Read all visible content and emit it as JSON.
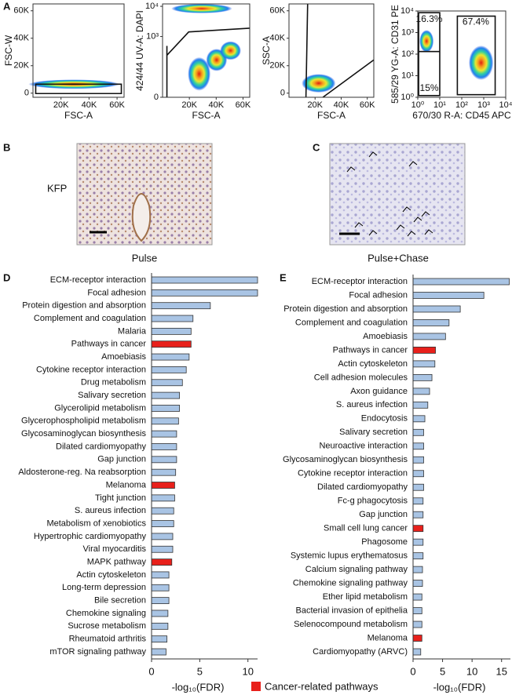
{
  "panel_labels": [
    "A",
    "B",
    "C",
    "D",
    "E"
  ],
  "images": [
    {
      "label": "KFP",
      "caption": "Pulse"
    },
    {
      "caption": "Pulse+Chase"
    }
  ],
  "legend": {
    "label": "Cancer-related pathways",
    "color": "#e8201b"
  },
  "chart_data": [
    {
      "type": "density",
      "xlabel": "FSC-A",
      "ylabel": "FSC-W",
      "xscale": "linear",
      "yscale": "linear",
      "xlim": [
        0,
        65000
      ],
      "ylim": [
        -3000,
        65000
      ],
      "xticks": [
        {
          "value": 20000,
          "label": "20K"
        },
        {
          "value": 40000,
          "label": "40K"
        },
        {
          "value": 60000,
          "label": "60K"
        }
      ],
      "yticks": [
        0,
        {
          "value": 20000,
          "label": "20K"
        },
        {
          "value": 40000,
          "label": "40K"
        },
        {
          "value": 60000,
          "label": "60K"
        }
      ]
    },
    {
      "type": "density",
      "xlabel": "FSC-A",
      "ylabel": "424/44 UV-A: DAPI",
      "xscale": "linear",
      "yscale": "symlog",
      "xlim": [
        0,
        65000
      ],
      "ylim": [
        0,
        12000
      ],
      "xticks": [
        {
          "value": 20000,
          "label": "20K"
        },
        {
          "value": 40000,
          "label": "40K"
        },
        {
          "value": 60000,
          "label": "60K"
        }
      ],
      "yticks": [
        0,
        {
          "value": 1000,
          "label": "10³"
        },
        {
          "value": 10000,
          "label": "10⁴"
        }
      ]
    },
    {
      "type": "density",
      "xlabel": "FSC-A",
      "ylabel": "SSC-A",
      "xscale": "linear",
      "yscale": "linear",
      "xlim": [
        0,
        65000
      ],
      "ylim": [
        -3000,
        65000
      ],
      "xticks": [
        {
          "value": 20000,
          "label": "20K"
        },
        {
          "value": 40000,
          "label": "40K"
        },
        {
          "value": 60000,
          "label": "60K"
        }
      ],
      "yticks": [
        0,
        {
          "value": 20000,
          "label": "20K"
        },
        {
          "value": 40000,
          "label": "40K"
        },
        {
          "value": 60000,
          "label": "60K"
        }
      ]
    },
    {
      "type": "density",
      "xlabel": "670/30 R-A: CD45 APC",
      "ylabel": "585/29 YG-A: CD31 PE",
      "xscale": "log",
      "yscale": "log",
      "xlim": [
        1,
        10000
      ],
      "ylim": [
        1,
        10000
      ],
      "xticks": [
        {
          "value": 1,
          "label": "10⁰"
        },
        {
          "value": 10,
          "label": "10¹"
        },
        {
          "value": 100,
          "label": "10²"
        },
        {
          "value": 1000,
          "label": "10³"
        },
        {
          "value": 10000,
          "label": "10⁴"
        }
      ],
      "yticks": [
        {
          "value": 1,
          "label": "10⁰"
        },
        {
          "value": 10,
          "label": "10¹"
        },
        {
          "value": 100,
          "label": "10²"
        },
        {
          "value": 1000,
          "label": "10³"
        },
        {
          "value": 10000,
          "label": "10⁴"
        }
      ],
      "annotations": [
        "16.3%",
        "67.4%",
        "15%"
      ]
    },
    {
      "type": "bar",
      "orientation": "horizontal",
      "xlabel": "-log₁₀(FDR)",
      "xlim": [
        0,
        11
      ],
      "xticks": [
        0,
        5,
        10
      ],
      "categories": [
        "ECM-receptor interaction",
        "Focal adhesion",
        "Protein digestion and absorption",
        "Complement and coagulation",
        "Malaria",
        "Pathways in cancer",
        "Amoebiasis",
        "Cytokine receptor interaction",
        "Drug metabolism",
        "Salivary secretion",
        "Glycerolipid metabolism",
        "Glycerophospholipid metabolism",
        "Glycosaminoglycan biosynthesis",
        "Dilated cardiomyopathy",
        "Gap junction",
        "Aldosterone-reg. Na reabsorption",
        "Melanoma",
        "Tight junction",
        "S. aureus infection",
        "Metabolism of xenobiotics",
        "Hypertrophic cardiomyopathy",
        "Viral myocarditis",
        "MAPK pathway",
        "Actin cytoskeleton",
        "Long-term depression",
        "Bile secretion",
        "Chemokine signaling",
        "Sucrose metabolism",
        "Rheumatoid arthritis",
        "mTOR signaling pathway"
      ],
      "values": [
        11.0,
        11.0,
        6.1,
        4.3,
        4.1,
        4.1,
        3.9,
        3.6,
        3.2,
        2.9,
        2.9,
        2.8,
        2.6,
        2.6,
        2.6,
        2.5,
        2.4,
        2.4,
        2.3,
        2.3,
        2.2,
        2.2,
        2.1,
        1.8,
        1.8,
        1.8,
        1.7,
        1.7,
        1.6,
        1.5
      ],
      "colors": [
        "#a9c4e4",
        "#a9c4e4",
        "#a9c4e4",
        "#a9c4e4",
        "#a9c4e4",
        "#e8201b",
        "#a9c4e4",
        "#a9c4e4",
        "#a9c4e4",
        "#a9c4e4",
        "#a9c4e4",
        "#a9c4e4",
        "#a9c4e4",
        "#a9c4e4",
        "#a9c4e4",
        "#a9c4e4",
        "#e8201b",
        "#a9c4e4",
        "#a9c4e4",
        "#a9c4e4",
        "#a9c4e4",
        "#a9c4e4",
        "#e8201b",
        "#a9c4e4",
        "#a9c4e4",
        "#a9c4e4",
        "#a9c4e4",
        "#a9c4e4",
        "#a9c4e4",
        "#a9c4e4"
      ]
    },
    {
      "type": "bar",
      "orientation": "horizontal",
      "xlabel": "-log₁₀(FDR)",
      "xlim": [
        0,
        16.5
      ],
      "xticks": [
        0,
        5,
        10,
        15
      ],
      "categories": [
        "ECM-receptor interaction",
        "Focal adhesion",
        "Protein digestion and absorption",
        "Complement and coagulation",
        "Amoebiasis",
        "Pathways in cancer",
        "Actin cytoskeleton",
        "Cell adhesion molecules",
        "Axon guidance",
        "S. aureus infection",
        "Endocytosis",
        "Salivary secretion",
        "Neuroactive interaction",
        "Glycosaminoglycan biosynthesis",
        "Cytokine receptor interaction",
        "Dilated cardiomyopathy",
        "Fc-g phagocytosis",
        "Gap junction",
        "Small cell lung cancer",
        "Phagosome",
        "Systemic lupus erythematosus",
        "Calcium signaling pathway",
        "Chemokine signaling pathway",
        "Ether lipid metabolism",
        "Bacterial invasion of epithelia",
        "Selenocompound metabolism",
        "Melanoma",
        "Cardiomyopathy (ARVC)"
      ],
      "values": [
        16.3,
        12.0,
        8.0,
        6.1,
        5.5,
        3.8,
        3.7,
        3.2,
        2.8,
        2.5,
        2.0,
        1.8,
        1.8,
        1.8,
        1.8,
        1.8,
        1.7,
        1.7,
        1.7,
        1.7,
        1.7,
        1.6,
        1.6,
        1.5,
        1.5,
        1.5,
        1.5,
        1.3
      ],
      "colors": [
        "#a9c4e4",
        "#a9c4e4",
        "#a9c4e4",
        "#a9c4e4",
        "#a9c4e4",
        "#e8201b",
        "#a9c4e4",
        "#a9c4e4",
        "#a9c4e4",
        "#a9c4e4",
        "#a9c4e4",
        "#a9c4e4",
        "#a9c4e4",
        "#a9c4e4",
        "#a9c4e4",
        "#a9c4e4",
        "#a9c4e4",
        "#a9c4e4",
        "#e8201b",
        "#a9c4e4",
        "#a9c4e4",
        "#a9c4e4",
        "#a9c4e4",
        "#a9c4e4",
        "#a9c4e4",
        "#a9c4e4",
        "#e8201b",
        "#a9c4e4"
      ]
    }
  ]
}
